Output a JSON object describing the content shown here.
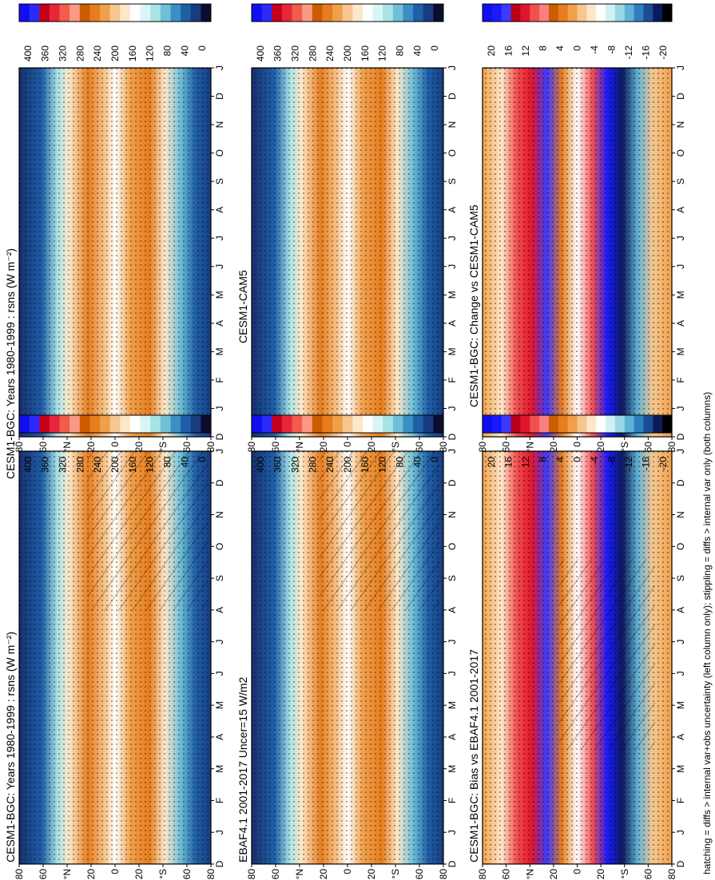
{
  "footnote": "hatching = diffs > internal var+obs uncertainty (left column only); stippling = diffs > internal var only (both columns)",
  "month_ticks": [
    "D",
    "J",
    "F",
    "M",
    "A",
    "M",
    "J",
    "J",
    "A",
    "S",
    "O",
    "N",
    "D",
    "J"
  ],
  "lat_ticks": [
    "80",
    "60",
    "°N",
    "20",
    "0",
    "20",
    "°S",
    "60",
    "80"
  ],
  "colors": {
    "abs_palette": [
      "#0f0ff0",
      "#2b2bff",
      "#c4001a",
      "#e8263a",
      "#f25d4b",
      "#fa9a86",
      "#cc5c00",
      "#e67d1f",
      "#f0a04b",
      "#f7c68f",
      "#fde7c9",
      "#ffffff",
      "#d9f5f5",
      "#a8e3e6",
      "#6fc0d6",
      "#3b8fc4",
      "#1f5fa8",
      "#173d80",
      "#0c0c2e"
    ],
    "diff_palette": [
      "#0f0ff0",
      "#1a1aff",
      "#3b3bff",
      "#b8001a",
      "#e0162e",
      "#f25050",
      "#f78080",
      "#cc5c00",
      "#e67d1f",
      "#f0a04b",
      "#f7c68f",
      "#fde7c9",
      "#ffffff",
      "#d0f0f4",
      "#9ad6e3",
      "#5fb3d6",
      "#2f7fc0",
      "#1a4d96",
      "#0c1a5c",
      "#000000"
    ],
    "stipple": "#000000"
  },
  "abs_colorbar_labels": [
    "400",
    "360",
    "320",
    "280",
    "240",
    "200",
    "160",
    "120",
    "80",
    "40",
    "0"
  ],
  "diff_colorbar_labels": [
    "20",
    "16",
    "12",
    "8",
    "4",
    "0",
    "-4",
    "-8",
    "-12",
    "-16",
    "-20"
  ],
  "chart_data": [
    {
      "type": "heatmap",
      "panel": "top-left",
      "title": "CESM1-BGC: Years 1980-1999 : rsns (W m⁻²)",
      "x_axis": "latitude (80N to 80S)",
      "y_axis": "month (Dec to Jan)",
      "variable": "rsns",
      "units": "W m-2",
      "colorbar_range": [
        0,
        400
      ],
      "hatching": true,
      "stippling": true
    },
    {
      "type": "heatmap",
      "panel": "top-right",
      "title": "CESM1-BGC: Years 1980-1999 : rsns (W m⁻²)",
      "x_axis": "latitude (80N to 80S)",
      "y_axis": "month (Dec to Jan)",
      "variable": "rsns",
      "units": "W m-2",
      "colorbar_range": [
        0,
        400
      ],
      "hatching": false,
      "stippling": true
    },
    {
      "type": "heatmap",
      "panel": "middle-left",
      "title": "EBAF4.1 2001-2017 Uncer=15 W/m2",
      "x_axis": "latitude (80N to 80S)",
      "y_axis": "month (Dec to Jan)",
      "units": "W m-2",
      "colorbar_range": [
        0,
        400
      ],
      "hatching": true,
      "stippling": true
    },
    {
      "type": "heatmap",
      "panel": "middle-right",
      "title": "CESM1-CAM5",
      "x_axis": "latitude (80N to 80S)",
      "y_axis": "month (Dec to Jan)",
      "units": "W m-2",
      "colorbar_range": [
        0,
        400
      ],
      "hatching": false,
      "stippling": true
    },
    {
      "type": "heatmap",
      "panel": "bottom-left",
      "title": "CESM1-BGC: Bias vs EBAF4.1 2001-2017",
      "x_axis": "latitude (80N to 80S)",
      "y_axis": "month (Dec to Jan)",
      "units": "W m-2",
      "colorbar_range": [
        -20,
        20
      ],
      "hatching": true,
      "stippling": true
    },
    {
      "type": "heatmap",
      "panel": "bottom-right",
      "title": "CESM1-BGC: Change vs CESM1-CAM5",
      "x_axis": "latitude (80N to 80S)",
      "y_axis": "month (Dec to Jan)",
      "units": "W m-2",
      "colorbar_range": [
        -20,
        20
      ],
      "hatching": false,
      "stippling": true
    }
  ]
}
